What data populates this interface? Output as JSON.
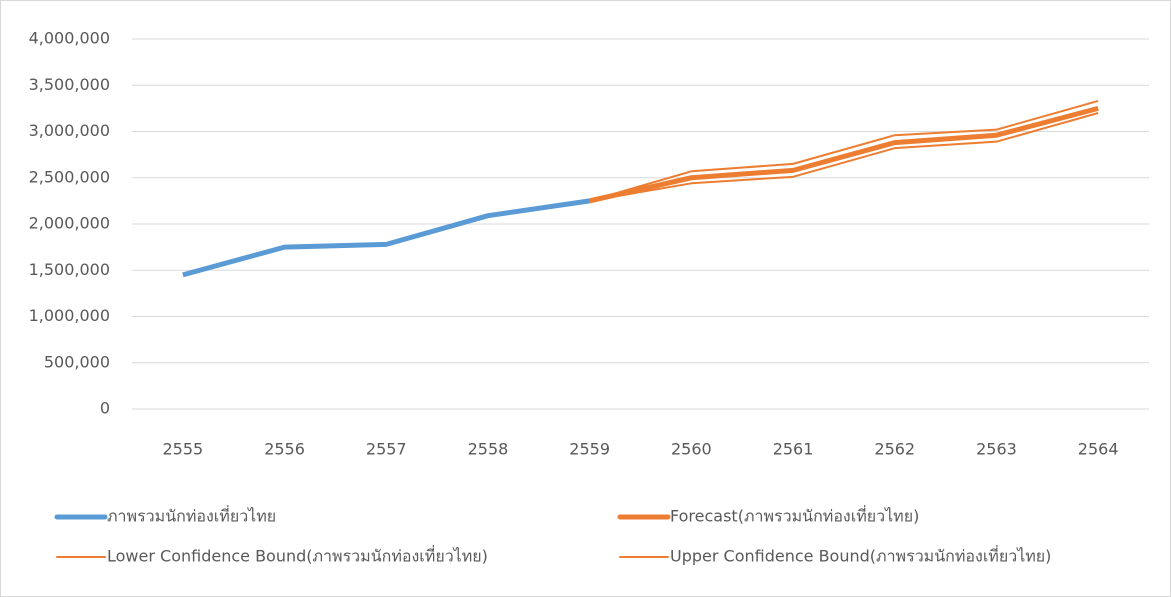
{
  "chart_data": {
    "type": "line",
    "categories": [
      "2555",
      "2556",
      "2557",
      "2558",
      "2559",
      "2560",
      "2561",
      "2562",
      "2563",
      "2564"
    ],
    "series": [
      {
        "name": "ภาพรวมนักท่องเที่ยวไทย",
        "color": "#5b9bd5",
        "width": 5,
        "values": [
          1450000,
          1750000,
          1780000,
          2090000,
          2250000,
          null,
          null,
          null,
          null,
          null
        ]
      },
      {
        "name": "Forecast(ภาพรวมนักท่องเที่ยวไทย)",
        "color": "#ed7d31",
        "width": 5,
        "values": [
          null,
          null,
          null,
          null,
          2250000,
          2500000,
          2580000,
          2880000,
          2960000,
          3250000
        ]
      },
      {
        "name": "Lower Confidence Bound(ภาพรวมนักท่องเที่ยวไทย)",
        "color": "#ed7d31",
        "width": 2,
        "values": [
          null,
          null,
          null,
          null,
          2250000,
          2440000,
          2510000,
          2820000,
          2890000,
          3200000
        ]
      },
      {
        "name": "Upper Confidence Bound(ภาพรวมนักท่องเที่ยวไทย)",
        "color": "#ed7d31",
        "width": 2,
        "values": [
          null,
          null,
          null,
          null,
          2250000,
          2570000,
          2650000,
          2960000,
          3020000,
          3330000
        ]
      }
    ],
    "ylim": [
      0,
      4000000
    ],
    "yticks": [
      0,
      {
        "value": 500000,
        "label": "500,000"
      },
      {
        "value": 1000000,
        "label": "1,000,000"
      },
      {
        "value": 1500000,
        "label": "1,500,000"
      },
      {
        "value": 2000000,
        "label": "2,000,000"
      },
      {
        "value": 2500000,
        "label": "2,500,000"
      },
      {
        "value": 3000000,
        "label": "3,000,000"
      },
      {
        "value": 3500000,
        "label": "3,500,000"
      },
      {
        "value": 4000000,
        "label": "4,000,000"
      }
    ],
    "grid": true,
    "legend": "bottom"
  }
}
